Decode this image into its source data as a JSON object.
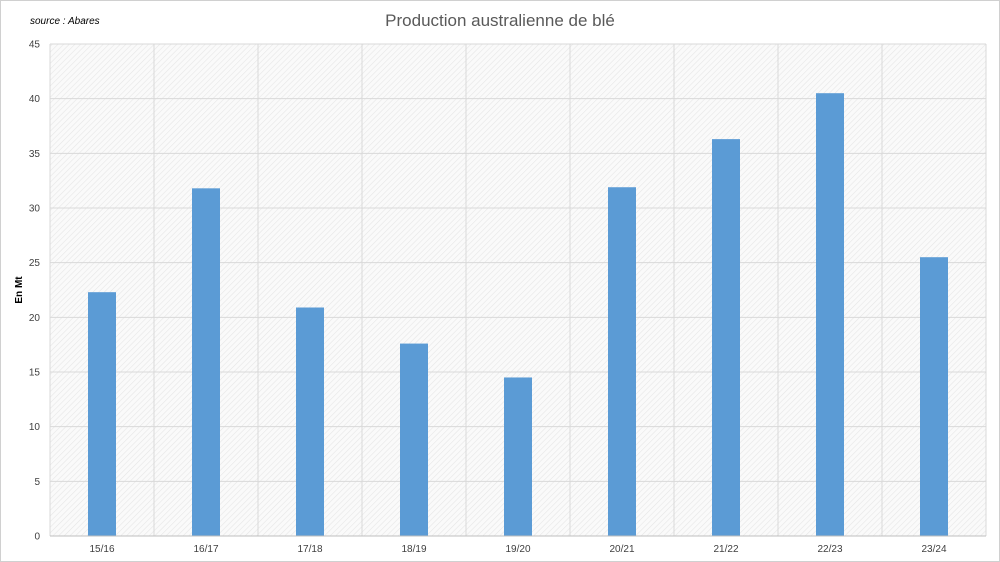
{
  "chart_data": {
    "type": "bar",
    "title": "Production australienne de blé",
    "source": "source : Abares",
    "xlabel": "",
    "ylabel": "En Mt",
    "categories": [
      "15/16",
      "16/17",
      "17/18",
      "18/19",
      "19/20",
      "20/21",
      "21/22",
      "22/23",
      "23/24"
    ],
    "values": [
      22.3,
      31.8,
      20.9,
      17.6,
      14.5,
      31.9,
      36.3,
      40.5,
      25.5
    ],
    "ylim": [
      0,
      45
    ],
    "yticks": [
      0,
      5,
      10,
      15,
      20,
      25,
      30,
      35,
      40,
      45
    ],
    "grid": true,
    "legend": "none",
    "colors": {
      "bar": "#5b9bd5",
      "grid": "#d9d9d9",
      "plot_background": "#f7f7f7"
    }
  }
}
